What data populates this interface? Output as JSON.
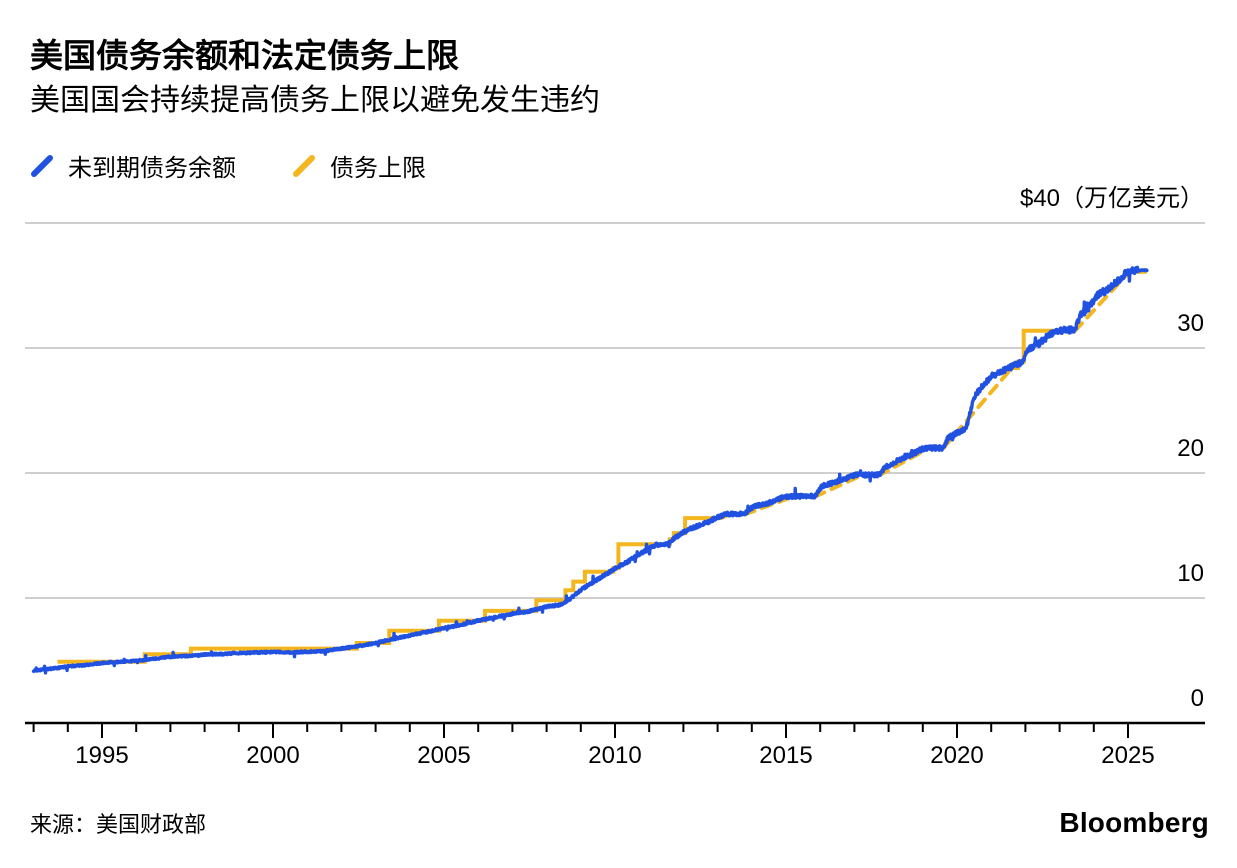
{
  "header": {
    "title": "美国债务余额和法定债务上限",
    "subtitle": "美国国会持续提高债务上限以避免发生违约"
  },
  "legend": {
    "items": [
      {
        "label": "未到期债务余额",
        "color": "#2151e0"
      },
      {
        "label": "债务上限",
        "color": "#f3b61e"
      }
    ]
  },
  "footer": {
    "source": "来源：美国财政部",
    "brand": "Bloomberg"
  },
  "colors": {
    "grid": "#c8c8c8",
    "axis": "#000000",
    "background": "#ffffff"
  },
  "chart_data": {
    "type": "line",
    "title": "美国债务余额和法定债务上限",
    "subtitle": "美国国会持续提高债务上限以避免发生违约",
    "unit_label": "$40（万亿美元）",
    "xlabel": "",
    "ylabel": "万亿美元",
    "grid": "horizontal",
    "legend_position": "top-left",
    "x_axis": {
      "range": [
        1992.75,
        2027.25
      ],
      "ticks_major": [
        1995,
        2000,
        2005,
        2010,
        2015,
        2020,
        2025
      ],
      "ticks_minor": [
        1993,
        1994,
        1996,
        1997,
        1998,
        1999,
        2001,
        2002,
        2003,
        2004,
        2006,
        2007,
        2008,
        2009,
        2011,
        2012,
        2013,
        2014,
        2016,
        2017,
        2018,
        2019,
        2021,
        2022,
        2023,
        2024
      ]
    },
    "y_axis": {
      "range": [
        0,
        40
      ],
      "gridlines": [
        40,
        30,
        20,
        10
      ],
      "ticks": [
        {
          "value": 30,
          "label": "30"
        },
        {
          "value": 20,
          "label": "20"
        },
        {
          "value": 10,
          "label": "10"
        },
        {
          "value": 0,
          "label": "0"
        }
      ]
    },
    "series": [
      {
        "name": "未到期债务余额",
        "type": "noisy-line",
        "color": "#2151e0",
        "anchors": [
          [
            1993.0,
            4.19
          ],
          [
            1993.3,
            4.28
          ],
          [
            1993.7,
            4.4
          ],
          [
            1994.0,
            4.53
          ],
          [
            1994.5,
            4.62
          ],
          [
            1995.0,
            4.8
          ],
          [
            1995.6,
            4.92
          ],
          [
            1995.9,
            4.96
          ],
          [
            1996.3,
            5.05
          ],
          [
            1996.7,
            5.2
          ],
          [
            1997.0,
            5.3
          ],
          [
            1997.5,
            5.37
          ],
          [
            1998.0,
            5.48
          ],
          [
            1998.5,
            5.52
          ],
          [
            1999.0,
            5.6
          ],
          [
            1999.5,
            5.64
          ],
          [
            2000.0,
            5.68
          ],
          [
            2000.5,
            5.65
          ],
          [
            2001.0,
            5.7
          ],
          [
            2001.5,
            5.75
          ],
          [
            2001.8,
            5.87
          ],
          [
            2002.0,
            5.95
          ],
          [
            2002.5,
            6.15
          ],
          [
            2003.0,
            6.4
          ],
          [
            2003.5,
            6.72
          ],
          [
            2004.0,
            7.0
          ],
          [
            2004.5,
            7.28
          ],
          [
            2005.0,
            7.6
          ],
          [
            2005.5,
            7.85
          ],
          [
            2006.0,
            8.2
          ],
          [
            2006.5,
            8.45
          ],
          [
            2007.0,
            8.75
          ],
          [
            2007.5,
            8.95
          ],
          [
            2008.0,
            9.3
          ],
          [
            2008.4,
            9.45
          ],
          [
            2008.7,
            9.95
          ],
          [
            2009.0,
            10.65
          ],
          [
            2009.3,
            11.15
          ],
          [
            2009.7,
            11.85
          ],
          [
            2010.0,
            12.35
          ],
          [
            2010.4,
            12.95
          ],
          [
            2010.8,
            13.65
          ],
          [
            2011.2,
            14.25
          ],
          [
            2011.55,
            14.32
          ],
          [
            2011.8,
            14.95
          ],
          [
            2012.2,
            15.55
          ],
          [
            2012.6,
            15.95
          ],
          [
            2013.0,
            16.45
          ],
          [
            2013.25,
            16.72
          ],
          [
            2013.78,
            16.74
          ],
          [
            2014.05,
            17.3
          ],
          [
            2014.5,
            17.62
          ],
          [
            2014.95,
            18.08
          ],
          [
            2015.15,
            18.13
          ],
          [
            2015.85,
            18.15
          ],
          [
            2016.05,
            18.95
          ],
          [
            2016.4,
            19.25
          ],
          [
            2016.8,
            19.6
          ],
          [
            2017.05,
            19.88
          ],
          [
            2017.3,
            19.85
          ],
          [
            2017.72,
            19.85
          ],
          [
            2017.9,
            20.45
          ],
          [
            2018.3,
            21.05
          ],
          [
            2018.7,
            21.5
          ],
          [
            2019.0,
            21.95
          ],
          [
            2019.15,
            22.0
          ],
          [
            2019.6,
            22.0
          ],
          [
            2019.75,
            22.85
          ],
          [
            2020.0,
            23.2
          ],
          [
            2020.25,
            23.55
          ],
          [
            2020.33,
            24.2
          ],
          [
            2020.5,
            26.1
          ],
          [
            2020.7,
            26.8
          ],
          [
            2021.0,
            27.75
          ],
          [
            2021.3,
            28.1
          ],
          [
            2021.5,
            28.4
          ],
          [
            2021.93,
            28.9
          ],
          [
            2022.05,
            29.8
          ],
          [
            2022.4,
            30.4
          ],
          [
            2022.8,
            31.2
          ],
          [
            2023.05,
            31.4
          ],
          [
            2023.45,
            31.46
          ],
          [
            2023.6,
            32.6
          ],
          [
            2023.85,
            33.2
          ],
          [
            2024.1,
            34.2
          ],
          [
            2024.45,
            34.8
          ],
          [
            2024.75,
            35.5
          ],
          [
            2024.95,
            36.05
          ],
          [
            2025.04,
            36.1
          ],
          [
            2025.15,
            36.2
          ],
          [
            2025.55,
            36.22
          ]
        ]
      },
      {
        "name": "债务上限",
        "type": "step",
        "color": "#f3b61e",
        "solid_runs": [
          {
            "steps": [
              [
                1993.7,
                4.9
              ],
              [
                1996.25,
                5.5
              ],
              [
                1997.6,
                5.95
              ],
              [
                2002.45,
                6.4
              ],
              [
                2003.4,
                7.384
              ],
              [
                2004.85,
                8.184
              ],
              [
                2006.2,
                8.965
              ],
              [
                2007.7,
                9.815
              ],
              [
                2008.55,
                10.615
              ],
              [
                2008.78,
                11.315
              ],
              [
                2009.12,
                12.104
              ],
              [
                2009.95,
                12.394
              ],
              [
                2010.1,
                14.294
              ],
              [
                2011.6,
                14.694
              ],
              [
                2011.72,
                15.194
              ],
              [
                2012.05,
                16.394
              ]
            ],
            "end": 2013.1
          },
          {
            "steps": [
              [
                2013.35,
                16.699
              ]
            ],
            "end": 2013.8
          },
          {
            "steps": [
              [
                2015.2,
                18.113
              ]
            ],
            "end": 2015.85
          },
          {
            "steps": [
              [
                2017.2,
                19.809
              ]
            ],
            "end": 2017.72
          },
          {
            "steps": [
              [
                2019.18,
                21.988
              ]
            ],
            "end": 2019.6
          },
          {
            "steps": [
              [
                2021.6,
                28.4
              ],
              [
                2021.78,
                28.9
              ],
              [
                2021.95,
                31.381
              ]
            ],
            "end": 2023.45
          },
          {
            "steps": [
              [
                2025.04,
                36.104
              ]
            ],
            "end": 2025.55
          }
        ],
        "suspensions": [
          [
            2013.1,
            16.394,
            2013.35,
            16.699
          ],
          [
            2013.8,
            16.699,
            2015.2,
            18.113
          ],
          [
            2015.85,
            18.113,
            2017.2,
            19.809
          ],
          [
            2017.72,
            19.809,
            2019.18,
            21.988
          ],
          [
            2019.6,
            21.988,
            2021.6,
            28.4
          ],
          [
            2023.45,
            31.381,
            2025.04,
            36.104
          ]
        ]
      }
    ]
  }
}
